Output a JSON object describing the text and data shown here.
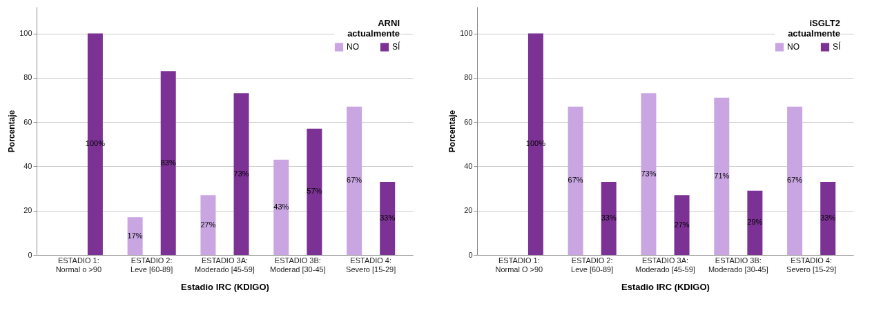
{
  "chart_data": [
    {
      "type": "bar",
      "xlabel": "Estadio IRC (KDIGO)",
      "ylabel": "Porcentaje",
      "legend_title": "ARNI\nactualmente",
      "legend": "top right",
      "grid": "y",
      "categories": [
        "ESTADIO 1:\nNormal o >90",
        "ESTADIO 2:\nLeve [60-89]",
        "ESTADIO 3A:\nModerado [45-59]",
        "ESTADIO 3B:\nModerad [30-45]",
        "ESTADIO 4:\nSevero [15-29]"
      ],
      "series": [
        {
          "name": "NO",
          "color": "#c9a6e2",
          "values": [
            null,
            17,
            27,
            43,
            67
          ],
          "value_labels": [
            null,
            "17%",
            "27%",
            "43%",
            "67%"
          ]
        },
        {
          "name": "SÍ",
          "color": "#7b3294",
          "values": [
            100,
            83,
            73,
            57,
            33
          ],
          "value_labels": [
            "100%",
            "83%",
            "73%",
            "57%",
            "33%"
          ]
        }
      ],
      "ylim": [
        0,
        112
      ],
      "yticks": [
        0,
        20,
        40,
        60,
        80,
        100
      ]
    },
    {
      "type": "bar",
      "xlabel": "Estadio IRC (KDIGO)",
      "ylabel": "Porcentaje",
      "legend_title": "iSGLT2\nactualmente",
      "legend": "top right",
      "grid": "y",
      "categories": [
        "ESTADIO 1:\nNormal O >90",
        "ESTADIO 2:\nLeve [60-89]",
        "ESTADIO 3A:\nModerado [45-59]",
        "ESTADIO 3B:\nModerado [30-45]",
        "ESTADIO 4:\nSevero [15-29]"
      ],
      "series": [
        {
          "name": "NO",
          "color": "#c9a6e2",
          "values": [
            null,
            67,
            73,
            71,
            67
          ],
          "value_labels": [
            null,
            "67%",
            "73%",
            "71%",
            "67%"
          ]
        },
        {
          "name": "SÍ",
          "color": "#7b3294",
          "values": [
            100,
            33,
            27,
            29,
            33
          ],
          "value_labels": [
            "100%",
            "33%",
            "27%",
            "29%",
            "33%"
          ]
        }
      ],
      "ylim": [
        0,
        112
      ],
      "yticks": [
        0,
        20,
        40,
        60,
        80,
        100
      ]
    }
  ]
}
